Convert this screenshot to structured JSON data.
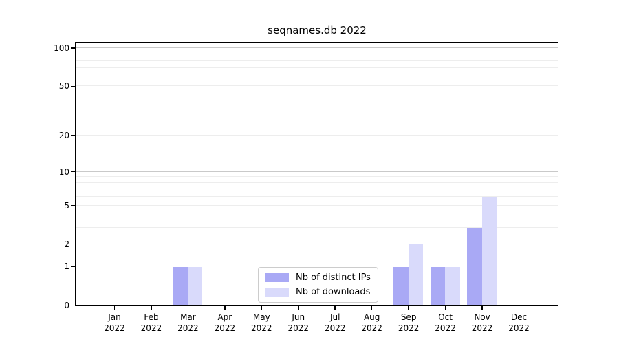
{
  "figure": {
    "background": "#ffffff"
  },
  "chart_data": {
    "type": "bar",
    "title": "seqnames.db 2022",
    "xlabel": "",
    "ylabel": "",
    "categories": [
      "Jan 2022",
      "Feb 2022",
      "Mar 2022",
      "Apr 2022",
      "May 2022",
      "Jun 2022",
      "Jul 2022",
      "Aug 2022",
      "Sep 2022",
      "Oct 2022",
      "Nov 2022",
      "Dec 2022"
    ],
    "series": [
      {
        "name": "Nb of distinct IPs",
        "color": "#a9a9f5",
        "values": [
          0,
          0,
          1,
          0,
          0,
          0,
          0,
          0,
          1,
          1,
          3,
          0
        ]
      },
      {
        "name": "Nb of downloads",
        "color": "#d9dafb",
        "values": [
          0,
          0,
          1,
          0,
          0,
          0,
          0,
          0,
          2,
          1,
          6,
          0
        ]
      }
    ],
    "yscale": "log1p",
    "ylim": [
      0,
      110
    ],
    "yticks": [
      0,
      1,
      2,
      5,
      10,
      20,
      50,
      100
    ],
    "grid": {
      "major": [
        1,
        10,
        100
      ],
      "minor": [
        2,
        3,
        4,
        5,
        6,
        7,
        8,
        9,
        20,
        30,
        40,
        50,
        60,
        70,
        80,
        90
      ]
    },
    "legend_position": "lower center"
  },
  "colors": {
    "grid_major": "#c9c9c9",
    "grid_minor": "#ededed",
    "axis": "#000000"
  }
}
